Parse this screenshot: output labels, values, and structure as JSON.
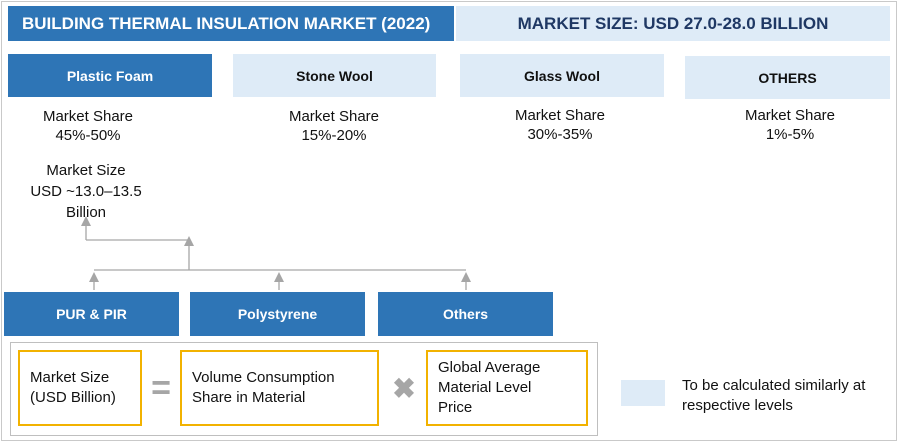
{
  "header": {
    "title": "BUILDING THERMAL INSULATION MARKET (2022)",
    "market_size": "MARKET SIZE: USD 27.0-28.0 BILLION"
  },
  "segments": [
    {
      "name": "Plastic Foam",
      "share_label": "Market Share",
      "share_value": "45%-50%"
    },
    {
      "name": "Stone Wool",
      "share_label": "Market Share",
      "share_value": "15%-20%"
    },
    {
      "name": "Glass Wool",
      "share_label": "Market Share",
      "share_value": "30%-35%"
    },
    {
      "name": "OTHERS",
      "share_label": "Market Share",
      "share_value": "1%-5%"
    }
  ],
  "plastic_foam_size": {
    "line1": "Market Size",
    "line2": "USD ~13.0–13.5",
    "line3": "Billion"
  },
  "sub_segments": [
    "PUR & PIR",
    "Polystyrene",
    "Others"
  ],
  "formula": {
    "term1_line1": "Market Size",
    "term1_line2": "(USD Billion)",
    "equals": "=",
    "term2_line1": "Volume Consumption",
    "term2_line2": "Share in Material",
    "times": "✖",
    "term3_line1": "Global Average",
    "term3_line2": "Material Level",
    "term3_line3": "Price"
  },
  "legend": {
    "line1": "To be calculated similarly at",
    "line2": "respective levels"
  },
  "colors": {
    "dark_blue": "#2e75b6",
    "light_blue": "#deebf7",
    "formula_border": "#f2b200",
    "connector": "#a6a6a6"
  }
}
